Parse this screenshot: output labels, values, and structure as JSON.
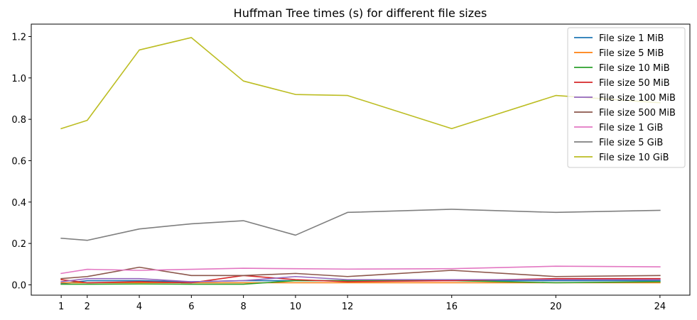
{
  "chart_data": {
    "type": "line",
    "title": "Huffman Tree times (s) for different file sizes",
    "xlabel": "",
    "ylabel": "",
    "x": [
      1,
      2,
      4,
      6,
      8,
      10,
      12,
      16,
      20,
      24
    ],
    "xticks": [
      "1",
      "2",
      "4",
      "6",
      "8",
      "10",
      "12",
      "16",
      "20",
      "24"
    ],
    "yticks": [
      "0.0",
      "0.2",
      "0.4",
      "0.6",
      "0.8",
      "1.0",
      "1.2"
    ],
    "xlim": [
      -0.15,
      25.15
    ],
    "ylim": [
      -0.05,
      1.26
    ],
    "grid": false,
    "legend_position": "top-right",
    "series": [
      {
        "name": "File size 1 MiB",
        "color": "#1f77b4",
        "values": [
          0.005,
          0.02,
          0.02,
          0.015,
          0.02,
          0.02,
          0.02,
          0.02,
          0.02,
          0.02
        ]
      },
      {
        "name": "File size 5 MiB",
        "color": "#ff7f0e",
        "values": [
          0.01,
          0.01,
          0.01,
          0.01,
          0.01,
          0.01,
          0.01,
          0.01,
          0.01,
          0.01
        ]
      },
      {
        "name": "File size 10 MiB",
        "color": "#2ca02c",
        "values": [
          0.003,
          0.003,
          0.004,
          0.003,
          0.003,
          0.02,
          0.02,
          0.02,
          0.01,
          0.015
        ]
      },
      {
        "name": "File size 50 MiB",
        "color": "#d62728",
        "values": [
          0.025,
          0.01,
          0.015,
          0.01,
          0.045,
          0.025,
          0.015,
          0.02,
          0.03,
          0.03
        ]
      },
      {
        "name": "File size 100 MiB",
        "color": "#9467bd",
        "values": [
          0.015,
          0.03,
          0.03,
          0.015,
          0.02,
          0.04,
          0.025,
          0.025,
          0.025,
          0.025
        ]
      },
      {
        "name": "File size 500 MiB",
        "color": "#8c564b",
        "values": [
          0.03,
          0.04,
          0.085,
          0.045,
          0.045,
          0.055,
          0.04,
          0.07,
          0.04,
          0.045
        ]
      },
      {
        "name": "File size 1 GiB",
        "color": "#e377c2",
        "values": [
          0.055,
          0.075,
          0.07,
          0.075,
          0.08,
          0.078,
          0.076,
          0.078,
          0.09,
          0.087
        ]
      },
      {
        "name": "File size 5 GiB",
        "color": "#7f7f7f",
        "values": [
          0.225,
          0.215,
          0.27,
          0.295,
          0.31,
          0.24,
          0.35,
          0.365,
          0.35,
          0.36
        ]
      },
      {
        "name": "File size 10 GiB",
        "color": "#bcbd22",
        "values": [
          0.755,
          0.795,
          1.135,
          1.195,
          0.985,
          0.92,
          0.915,
          0.755,
          0.915,
          0.88
        ]
      }
    ]
  }
}
